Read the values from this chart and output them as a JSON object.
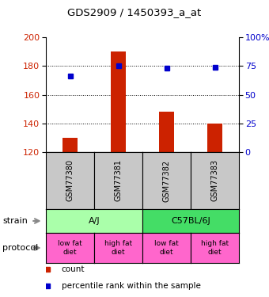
{
  "title": "GDS2909 / 1450393_a_at",
  "samples": [
    "GSM77380",
    "GSM77381",
    "GSM77382",
    "GSM77383"
  ],
  "bar_values": [
    130,
    190,
    148,
    140
  ],
  "bar_base": 120,
  "bar_color": "#cc2200",
  "dot_values_pct": [
    66,
    75,
    73,
    74
  ],
  "dot_color": "#0000cc",
  "ylim_left": [
    120,
    200
  ],
  "ylim_right": [
    0,
    100
  ],
  "yticks_left": [
    120,
    140,
    160,
    180,
    200
  ],
  "yticks_right": [
    0,
    25,
    50,
    75,
    100
  ],
  "ytick_labels_right": [
    "0",
    "25",
    "50",
    "75",
    "100%"
  ],
  "strain_labels": [
    "A/J",
    "C57BL/6J"
  ],
  "strain_colors": [
    "#aaffaa",
    "#44dd66"
  ],
  "protocol_labels": [
    "low fat\ndiet",
    "high fat\ndiet",
    "low fat\ndiet",
    "high fat\ndiet"
  ],
  "protocol_color": "#ff66cc",
  "sample_box_color": "#c8c8c8",
  "background_color": "#ffffff",
  "left_ylabel_color": "#cc2200",
  "right_ylabel_color": "#0000cc"
}
